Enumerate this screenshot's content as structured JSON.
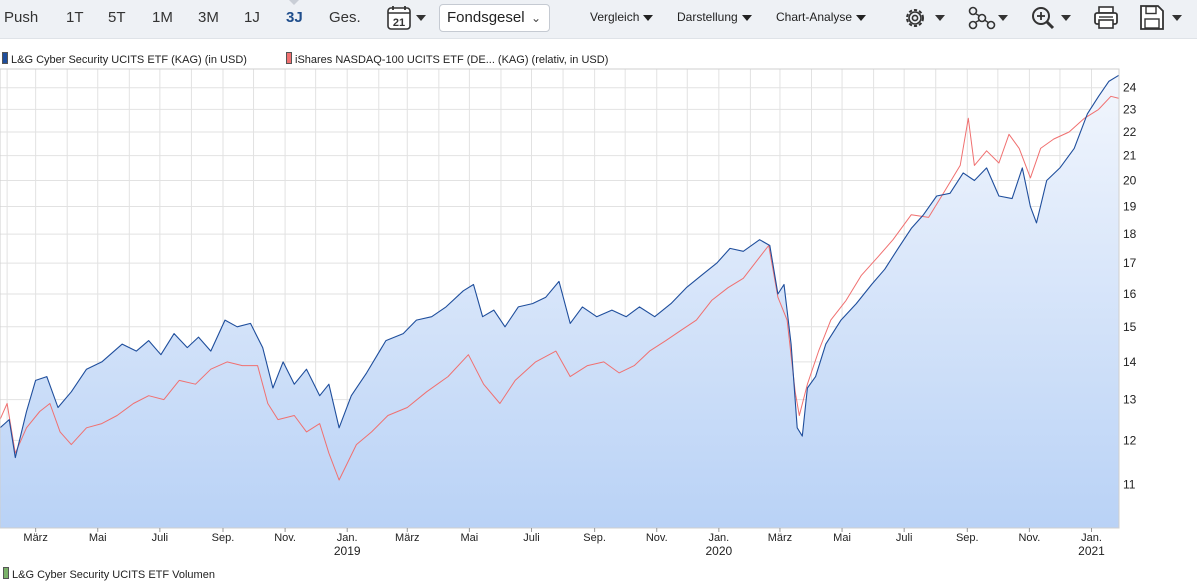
{
  "toolbar": {
    "ranges": [
      {
        "label": "Push",
        "active": false
      },
      {
        "label": "1T",
        "active": false
      },
      {
        "label": "5T",
        "active": false
      },
      {
        "label": "1M",
        "active": false
      },
      {
        "label": "3M",
        "active": false
      },
      {
        "label": "1J",
        "active": false
      },
      {
        "label": "3J",
        "active": true
      },
      {
        "label": "Ges.",
        "active": false
      }
    ],
    "calendar_day": "21",
    "select_value": "Fondsgesel",
    "menus": {
      "compare": "Vergleich",
      "display": "Darstellung",
      "analysis": "Chart-Analyse"
    },
    "icons": [
      "calendar-icon",
      "settings-gear-icon",
      "network-icon",
      "zoom-icon",
      "print-icon",
      "save-icon"
    ]
  },
  "colors": {
    "series1": "#1f4e9c",
    "series2": "#f07070",
    "area_top": "#f2f6fd",
    "area_bottom": "#b9d2f6",
    "grid": "#e2e2e2",
    "toolbar_bg": "#eef1f5",
    "active_range": "#1f4e8c"
  },
  "chart_data": {
    "type": "line",
    "log_scale": true,
    "ylim": [
      10.1,
      24.9
    ],
    "yticks": [
      11,
      12,
      13,
      14,
      15,
      16,
      17,
      18,
      19,
      20,
      21,
      22,
      23,
      24
    ],
    "y_axis_side": "right",
    "x_range": [
      "2018-01-25",
      "2021-01-28"
    ],
    "x_ticks": [
      {
        "date": "2018-03-01",
        "label": "März",
        "year": ""
      },
      {
        "date": "2018-05-01",
        "label": "Mai",
        "year": ""
      },
      {
        "date": "2018-07-01",
        "label": "Juli",
        "year": ""
      },
      {
        "date": "2018-09-01",
        "label": "Sep.",
        "year": ""
      },
      {
        "date": "2018-11-01",
        "label": "Nov.",
        "year": ""
      },
      {
        "date": "2019-01-01",
        "label": "Jan.",
        "year": "2019"
      },
      {
        "date": "2019-03-01",
        "label": "März",
        "year": ""
      },
      {
        "date": "2019-05-01",
        "label": "Mai",
        "year": ""
      },
      {
        "date": "2019-07-01",
        "label": "Juli",
        "year": ""
      },
      {
        "date": "2019-09-01",
        "label": "Sep.",
        "year": ""
      },
      {
        "date": "2019-11-01",
        "label": "Nov.",
        "year": ""
      },
      {
        "date": "2020-01-01",
        "label": "Jan.",
        "year": "2020"
      },
      {
        "date": "2020-03-01",
        "label": "März",
        "year": ""
      },
      {
        "date": "2020-05-01",
        "label": "Mai",
        "year": ""
      },
      {
        "date": "2020-07-01",
        "label": "Juli",
        "year": ""
      },
      {
        "date": "2020-09-01",
        "label": "Sep.",
        "year": ""
      },
      {
        "date": "2020-11-01",
        "label": "Nov.",
        "year": ""
      },
      {
        "date": "2021-01-01",
        "label": "Jan.",
        "year": "2021"
      }
    ],
    "grid": true,
    "legend_position": "top-left",
    "volume_legend": "L&G Cyber Security UCITS ETF Volumen",
    "series": [
      {
        "name": "L&G Cyber Security UCITS ETF (KAG) (in USD)",
        "color": "#1f4e9c",
        "area": true,
        "points": [
          [
            "2018-01-25",
            12.3
          ],
          [
            "2018-02-03",
            12.5
          ],
          [
            "2018-02-09",
            11.6
          ],
          [
            "2018-02-20",
            12.7
          ],
          [
            "2018-03-01",
            13.5
          ],
          [
            "2018-03-12",
            13.6
          ],
          [
            "2018-03-23",
            12.8
          ],
          [
            "2018-04-05",
            13.2
          ],
          [
            "2018-04-20",
            13.8
          ],
          [
            "2018-05-05",
            14.0
          ],
          [
            "2018-05-25",
            14.5
          ],
          [
            "2018-06-08",
            14.3
          ],
          [
            "2018-06-20",
            14.6
          ],
          [
            "2018-07-02",
            14.2
          ],
          [
            "2018-07-15",
            14.8
          ],
          [
            "2018-07-28",
            14.4
          ],
          [
            "2018-08-08",
            14.7
          ],
          [
            "2018-08-20",
            14.3
          ],
          [
            "2018-09-03",
            15.2
          ],
          [
            "2018-09-15",
            15.0
          ],
          [
            "2018-09-28",
            15.1
          ],
          [
            "2018-10-10",
            14.4
          ],
          [
            "2018-10-20",
            13.3
          ],
          [
            "2018-10-30",
            14.0
          ],
          [
            "2018-11-10",
            13.4
          ],
          [
            "2018-11-22",
            13.8
          ],
          [
            "2018-12-05",
            13.1
          ],
          [
            "2018-12-14",
            13.4
          ],
          [
            "2018-12-24",
            12.3
          ],
          [
            "2019-01-05",
            13.1
          ],
          [
            "2019-01-20",
            13.7
          ],
          [
            "2019-02-08",
            14.6
          ],
          [
            "2019-02-25",
            14.8
          ],
          [
            "2019-03-10",
            15.2
          ],
          [
            "2019-03-25",
            15.3
          ],
          [
            "2019-04-08",
            15.6
          ],
          [
            "2019-04-25",
            16.1
          ],
          [
            "2019-05-05",
            16.3
          ],
          [
            "2019-05-14",
            15.3
          ],
          [
            "2019-05-25",
            15.5
          ],
          [
            "2019-06-05",
            15.0
          ],
          [
            "2019-06-18",
            15.6
          ],
          [
            "2019-07-02",
            15.7
          ],
          [
            "2019-07-15",
            15.9
          ],
          [
            "2019-07-28",
            16.4
          ],
          [
            "2019-08-08",
            15.1
          ],
          [
            "2019-08-20",
            15.6
          ],
          [
            "2019-09-03",
            15.3
          ],
          [
            "2019-09-18",
            15.5
          ],
          [
            "2019-10-02",
            15.3
          ],
          [
            "2019-10-15",
            15.6
          ],
          [
            "2019-10-30",
            15.3
          ],
          [
            "2019-11-15",
            15.7
          ],
          [
            "2019-11-30",
            16.2
          ],
          [
            "2019-12-15",
            16.6
          ],
          [
            "2019-12-30",
            17.0
          ],
          [
            "2020-01-12",
            17.5
          ],
          [
            "2020-01-25",
            17.4
          ],
          [
            "2020-02-10",
            17.8
          ],
          [
            "2020-02-20",
            17.6
          ],
          [
            "2020-02-28",
            16.0
          ],
          [
            "2020-03-05",
            16.3
          ],
          [
            "2020-03-12",
            14.5
          ],
          [
            "2020-03-18",
            12.3
          ],
          [
            "2020-03-23",
            12.1
          ],
          [
            "2020-03-28",
            13.3
          ],
          [
            "2020-04-05",
            13.6
          ],
          [
            "2020-04-15",
            14.5
          ],
          [
            "2020-04-30",
            15.2
          ],
          [
            "2020-05-15",
            15.7
          ],
          [
            "2020-05-30",
            16.3
          ],
          [
            "2020-06-12",
            16.8
          ],
          [
            "2020-06-25",
            17.5
          ],
          [
            "2020-07-08",
            18.2
          ],
          [
            "2020-07-20",
            18.7
          ],
          [
            "2020-08-02",
            19.4
          ],
          [
            "2020-08-15",
            19.5
          ],
          [
            "2020-08-28",
            20.3
          ],
          [
            "2020-09-08",
            20.0
          ],
          [
            "2020-09-20",
            20.5
          ],
          [
            "2020-10-02",
            19.4
          ],
          [
            "2020-10-15",
            19.3
          ],
          [
            "2020-10-25",
            20.5
          ],
          [
            "2020-11-02",
            19.0
          ],
          [
            "2020-11-08",
            18.4
          ],
          [
            "2020-11-18",
            20.0
          ],
          [
            "2020-12-01",
            20.5
          ],
          [
            "2020-12-15",
            21.3
          ],
          [
            "2020-12-28",
            22.8
          ],
          [
            "2021-01-08",
            23.6
          ],
          [
            "2021-01-18",
            24.3
          ],
          [
            "2021-01-28",
            24.6
          ]
        ]
      },
      {
        "name": "iShares NASDAQ-100 UCITS ETF (DE... (KAG) (relativ, in USD)",
        "color": "#f07070",
        "area": false,
        "points": [
          [
            "2018-01-25",
            12.5
          ],
          [
            "2018-02-01",
            12.9
          ],
          [
            "2018-02-09",
            11.7
          ],
          [
            "2018-02-20",
            12.3
          ],
          [
            "2018-03-05",
            12.7
          ],
          [
            "2018-03-15",
            12.9
          ],
          [
            "2018-03-25",
            12.2
          ],
          [
            "2018-04-05",
            11.9
          ],
          [
            "2018-04-20",
            12.3
          ],
          [
            "2018-05-05",
            12.4
          ],
          [
            "2018-05-20",
            12.6
          ],
          [
            "2018-06-05",
            12.9
          ],
          [
            "2018-06-20",
            13.1
          ],
          [
            "2018-07-05",
            13.0
          ],
          [
            "2018-07-20",
            13.5
          ],
          [
            "2018-08-05",
            13.4
          ],
          [
            "2018-08-20",
            13.8
          ],
          [
            "2018-09-05",
            14.0
          ],
          [
            "2018-09-20",
            13.9
          ],
          [
            "2018-10-05",
            13.9
          ],
          [
            "2018-10-15",
            12.9
          ],
          [
            "2018-10-25",
            12.5
          ],
          [
            "2018-11-10",
            12.6
          ],
          [
            "2018-11-22",
            12.2
          ],
          [
            "2018-12-05",
            12.4
          ],
          [
            "2018-12-14",
            11.7
          ],
          [
            "2018-12-24",
            11.1
          ],
          [
            "2019-01-10",
            11.9
          ],
          [
            "2019-01-25",
            12.2
          ],
          [
            "2019-02-10",
            12.6
          ],
          [
            "2019-03-01",
            12.8
          ],
          [
            "2019-03-20",
            13.2
          ],
          [
            "2019-04-10",
            13.6
          ],
          [
            "2019-04-30",
            14.2
          ],
          [
            "2019-05-15",
            13.4
          ],
          [
            "2019-05-31",
            12.9
          ],
          [
            "2019-06-15",
            13.5
          ],
          [
            "2019-07-05",
            14.0
          ],
          [
            "2019-07-25",
            14.3
          ],
          [
            "2019-08-08",
            13.6
          ],
          [
            "2019-08-25",
            13.9
          ],
          [
            "2019-09-10",
            14.0
          ],
          [
            "2019-09-25",
            13.7
          ],
          [
            "2019-10-10",
            13.9
          ],
          [
            "2019-10-25",
            14.3
          ],
          [
            "2019-11-10",
            14.6
          ],
          [
            "2019-11-25",
            14.9
          ],
          [
            "2019-12-10",
            15.2
          ],
          [
            "2019-12-25",
            15.8
          ],
          [
            "2020-01-10",
            16.2
          ],
          [
            "2020-01-25",
            16.5
          ],
          [
            "2020-02-10",
            17.2
          ],
          [
            "2020-02-19",
            17.6
          ],
          [
            "2020-02-28",
            15.9
          ],
          [
            "2020-03-08",
            15.2
          ],
          [
            "2020-03-16",
            13.2
          ],
          [
            "2020-03-20",
            12.6
          ],
          [
            "2020-03-28",
            13.4
          ],
          [
            "2020-04-08",
            14.3
          ],
          [
            "2020-04-20",
            15.2
          ],
          [
            "2020-05-05",
            15.8
          ],
          [
            "2020-05-20",
            16.6
          ],
          [
            "2020-06-05",
            17.2
          ],
          [
            "2020-06-20",
            17.8
          ],
          [
            "2020-07-08",
            18.7
          ],
          [
            "2020-07-25",
            18.6
          ],
          [
            "2020-08-10",
            19.6
          ],
          [
            "2020-08-25",
            20.6
          ],
          [
            "2020-09-02",
            22.6
          ],
          [
            "2020-09-08",
            20.6
          ],
          [
            "2020-09-20",
            21.2
          ],
          [
            "2020-10-02",
            20.7
          ],
          [
            "2020-10-12",
            21.9
          ],
          [
            "2020-10-22",
            21.3
          ],
          [
            "2020-11-02",
            20.1
          ],
          [
            "2020-11-12",
            21.3
          ],
          [
            "2020-11-25",
            21.7
          ],
          [
            "2020-12-10",
            22.0
          ],
          [
            "2020-12-25",
            22.6
          ],
          [
            "2021-01-08",
            23.0
          ],
          [
            "2021-01-20",
            23.6
          ],
          [
            "2021-01-28",
            23.5
          ]
        ]
      }
    ]
  }
}
